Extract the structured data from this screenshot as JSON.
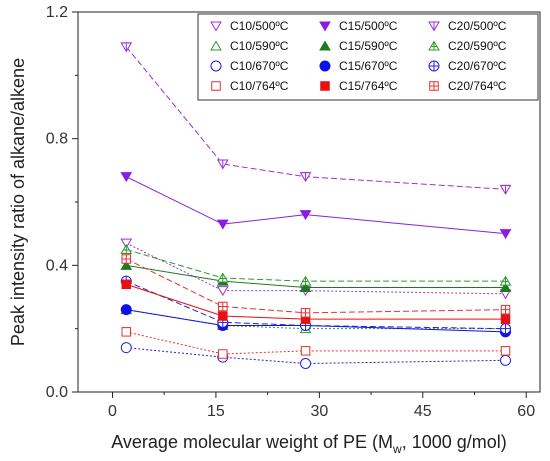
{
  "chart_data": {
    "type": "line",
    "xlabel_main": "Average molecular weight of PE (M",
    "xlabel_sub": "w",
    "xlabel_tail": ", 1000 g/mol)",
    "ylabel": "Peak intensity ratio of alkane/alkene",
    "xlim": [
      -5,
      62
    ],
    "ylim": [
      0.0,
      1.2
    ],
    "xticks": [
      0,
      15,
      30,
      45,
      60
    ],
    "xtick_labels": [
      "0",
      "15",
      "30",
      "45",
      "60"
    ],
    "yticks": [
      0.0,
      0.4,
      0.8,
      1.2
    ],
    "ytick_labels": [
      "0.0",
      "0.4",
      "0.8",
      "1.2"
    ],
    "legend_placement": "top-right",
    "x": [
      2,
      16,
      28,
      57
    ],
    "series": [
      {
        "name": "C10/500ºC",
        "color": "#9b30d9",
        "marker": "tri-down-open",
        "values": [
          0.47,
          0.32,
          0.32,
          0.31
        ]
      },
      {
        "name": "C15/500ºC",
        "color": "#8a1ee0",
        "marker": "tri-down-filled",
        "values": [
          0.68,
          0.53,
          0.56,
          0.5
        ]
      },
      {
        "name": "C20/500ºC",
        "color": "#9b30d9",
        "marker": "tri-down-cross",
        "values": [
          1.09,
          0.72,
          0.68,
          0.64
        ]
      },
      {
        "name": "C10/590ºC",
        "color": "#2e9a2e",
        "marker": "tri-up-open",
        "values": [
          0.26,
          0.21,
          0.2,
          0.2
        ]
      },
      {
        "name": "C15/590ºC",
        "color": "#1f7a1f",
        "marker": "tri-up-filled",
        "values": [
          0.4,
          0.35,
          0.33,
          0.33
        ]
      },
      {
        "name": "C20/590ºC",
        "color": "#2e9a2e",
        "marker": "tri-up-cross",
        "values": [
          0.45,
          0.36,
          0.35,
          0.35
        ]
      },
      {
        "name": "C10/670ºC",
        "color": "#2222dd",
        "marker": "circle-open",
        "values": [
          0.14,
          0.11,
          0.09,
          0.1
        ]
      },
      {
        "name": "C15/670ºC",
        "color": "#1010ee",
        "marker": "circle-filled",
        "values": [
          0.26,
          0.21,
          0.21,
          0.19
        ]
      },
      {
        "name": "C20/670ºC",
        "color": "#2222dd",
        "marker": "circle-cross",
        "values": [
          0.35,
          0.22,
          0.21,
          0.2
        ]
      },
      {
        "name": "C10/764ºC",
        "color": "#e53030",
        "marker": "square-open",
        "values": [
          0.19,
          0.12,
          0.13,
          0.13
        ]
      },
      {
        "name": "C15/764ºC",
        "color": "#e81010",
        "marker": "square-filled",
        "values": [
          0.34,
          0.24,
          0.23,
          0.23
        ]
      },
      {
        "name": "C20/764ºC",
        "color": "#e53030",
        "marker": "square-cross",
        "values": [
          0.42,
          0.27,
          0.25,
          0.26
        ]
      }
    ]
  }
}
